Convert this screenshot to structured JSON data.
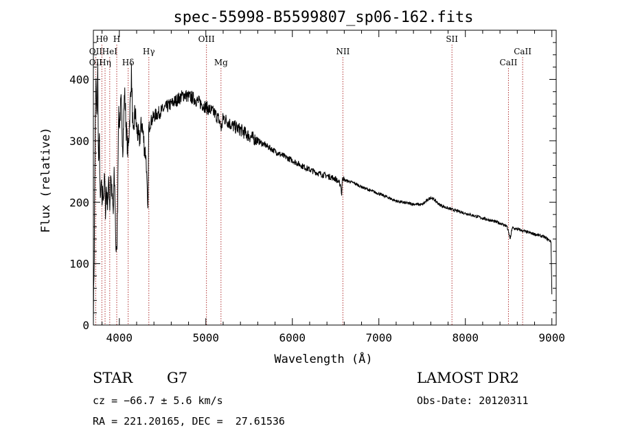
{
  "chart_data": {
    "type": "line",
    "title": "spec-55998-B5599807_sp06-162.fits",
    "xlabel": "Wavelength (Å)",
    "ylabel": "Flux (relative)",
    "xlim": [
      3700,
      9050
    ],
    "ylim": [
      0,
      480
    ],
    "xticks": [
      4000,
      5000,
      6000,
      7000,
      8000,
      9000
    ],
    "yticks": [
      0,
      100,
      200,
      300,
      400
    ],
    "series": [
      {
        "x": [
          3700,
          3710,
          3720,
          3730,
          3740,
          3750,
          3760,
          3770,
          3780,
          3790,
          3800,
          3810,
          3820,
          3830,
          3840,
          3850,
          3860,
          3870,
          3880,
          3890,
          3900,
          3910,
          3920,
          3930,
          3940,
          3950,
          3960,
          3970,
          3980,
          3990,
          4000,
          4020,
          4040,
          4060,
          4080,
          4100,
          4120,
          4140,
          4160,
          4180,
          4200,
          4230,
          4260,
          4290,
          4310,
          4330,
          4340,
          4360,
          4400,
          4450,
          4500,
          4550,
          4600,
          4650,
          4700,
          4750,
          4800,
          4850,
          4900,
          4950,
          5000,
          5050,
          5100,
          5150,
          5180,
          5200,
          5250,
          5300,
          5400,
          5500,
          5600,
          5700,
          5800,
          5900,
          6000,
          6100,
          6200,
          6300,
          6400,
          6500,
          6560,
          6570,
          6580,
          6600,
          6700,
          6800,
          6900,
          7000,
          7100,
          7200,
          7300,
          7400,
          7500,
          7600,
          7650,
          7700,
          7800,
          7900,
          8000,
          8100,
          8200,
          8300,
          8400,
          8480,
          8500,
          8520,
          8540,
          8600,
          8700,
          8800,
          8900,
          8950,
          8980,
          8990,
          9000
        ],
        "y": [
          10,
          120,
          300,
          400,
          330,
          420,
          260,
          300,
          190,
          230,
          200,
          220,
          210,
          240,
          190,
          225,
          200,
          215,
          230,
          195,
          250,
          220,
          200,
          180,
          240,
          210,
          130,
          110,
          200,
          340,
          330,
          360,
          290,
          380,
          320,
          280,
          340,
          410,
          300,
          350,
          320,
          300,
          330,
          290,
          270,
          180,
          320,
          330,
          340,
          345,
          350,
          355,
          360,
          365,
          370,
          375,
          372,
          370,
          365,
          360,
          355,
          350,
          345,
          335,
          320,
          338,
          332,
          325,
          318,
          308,
          300,
          292,
          283,
          275,
          268,
          260,
          253,
          247,
          243,
          238,
          228,
          212,
          242,
          236,
          232,
          225,
          219,
          214,
          208,
          202,
          199,
          197,
          196,
          208,
          203,
          196,
          190,
          186,
          182,
          178,
          174,
          170,
          166,
          161,
          150,
          140,
          158,
          156,
          152,
          148,
          144,
          140,
          137,
          135,
          50
        ]
      }
    ],
    "line_markers": [
      {
        "label": "Hθ",
        "wavelength": 3798,
        "row": 1
      },
      {
        "label": "H",
        "wavelength": 3970,
        "row": 1
      },
      {
        "label": "OII",
        "wavelength": 3727,
        "row": 2
      },
      {
        "label": "HeI",
        "wavelength": 3889,
        "row": 2
      },
      {
        "label": "Hγ",
        "wavelength": 4341,
        "row": 2
      },
      {
        "label": "OIII",
        "wavelength": 5007,
        "row": 1
      },
      {
        "label": "NII",
        "wavelength": 6584,
        "row": 2
      },
      {
        "label": "SII",
        "wavelength": 7845,
        "row": 1
      },
      {
        "label": "CaII",
        "wavelength": 8662,
        "row": 2
      },
      {
        "label": "OII",
        "wavelength": 3727,
        "row": 3
      },
      {
        "label": "Hη",
        "wavelength": 3835,
        "row": 3
      },
      {
        "label": "Hδ",
        "wavelength": 4102,
        "row": 3
      },
      {
        "label": "Mg",
        "wavelength": 5175,
        "row": 3
      },
      {
        "label": "CaII",
        "wavelength": 8498,
        "row": 3
      }
    ],
    "marker_color": "#b03030"
  },
  "info": {
    "object_class": "STAR",
    "subclass": "G7",
    "survey": "LAMOST DR2",
    "redshift": "cz = −66.7 ± 5.6 km/s",
    "obs_date": "Obs-Date: 20120311",
    "coords": "RA = 221.20165, DEC =  27.61536"
  }
}
